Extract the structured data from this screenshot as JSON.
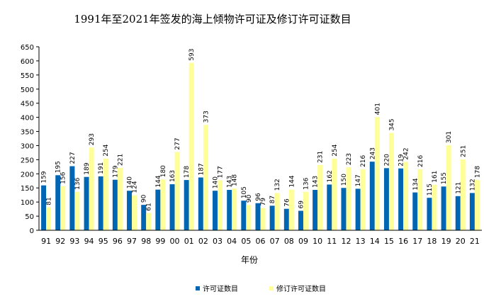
{
  "chart_data": {
    "type": "bar",
    "title": "1991年至2021年签发的海上倾物许可证及修订许可证数目",
    "xlabel": "年份",
    "ylabel": "",
    "ylim": [
      0,
      650
    ],
    "yticks": [
      0,
      50,
      100,
      150,
      200,
      250,
      300,
      350,
      400,
      450,
      500,
      550,
      600,
      650
    ],
    "grid": false,
    "legend_position": "bottom",
    "categories": [
      "91",
      "92",
      "93",
      "94",
      "95",
      "96",
      "97",
      "98",
      "99",
      "00",
      "01",
      "02",
      "03",
      "04",
      "05",
      "06",
      "07",
      "08",
      "09",
      "10",
      "11",
      "12",
      "13",
      "14",
      "15",
      "16",
      "17",
      "18",
      "19",
      "20",
      "21"
    ],
    "series": [
      {
        "name": "许可证数目",
        "color": "#0066b3",
        "values": [
          159,
          195,
          227,
          189,
          191,
          179,
          140,
          90,
          144,
          163,
          178,
          187,
          140,
          143,
          105,
          96,
          87,
          76,
          69,
          143,
          162,
          150,
          147,
          243,
          220,
          219,
          134,
          115,
          155,
          121,
          132
        ]
      },
      {
        "name": "修订许可证数目",
        "color": "#ffff99",
        "values": [
          81,
          156,
          136,
          293,
          254,
          221,
          124,
          61,
          180,
          277,
          593,
          373,
          177,
          148,
          90,
          79,
          132,
          144,
          136,
          231,
          254,
          223,
          216,
          401,
          345,
          242,
          216,
          161,
          301,
          251,
          178
        ]
      }
    ]
  }
}
